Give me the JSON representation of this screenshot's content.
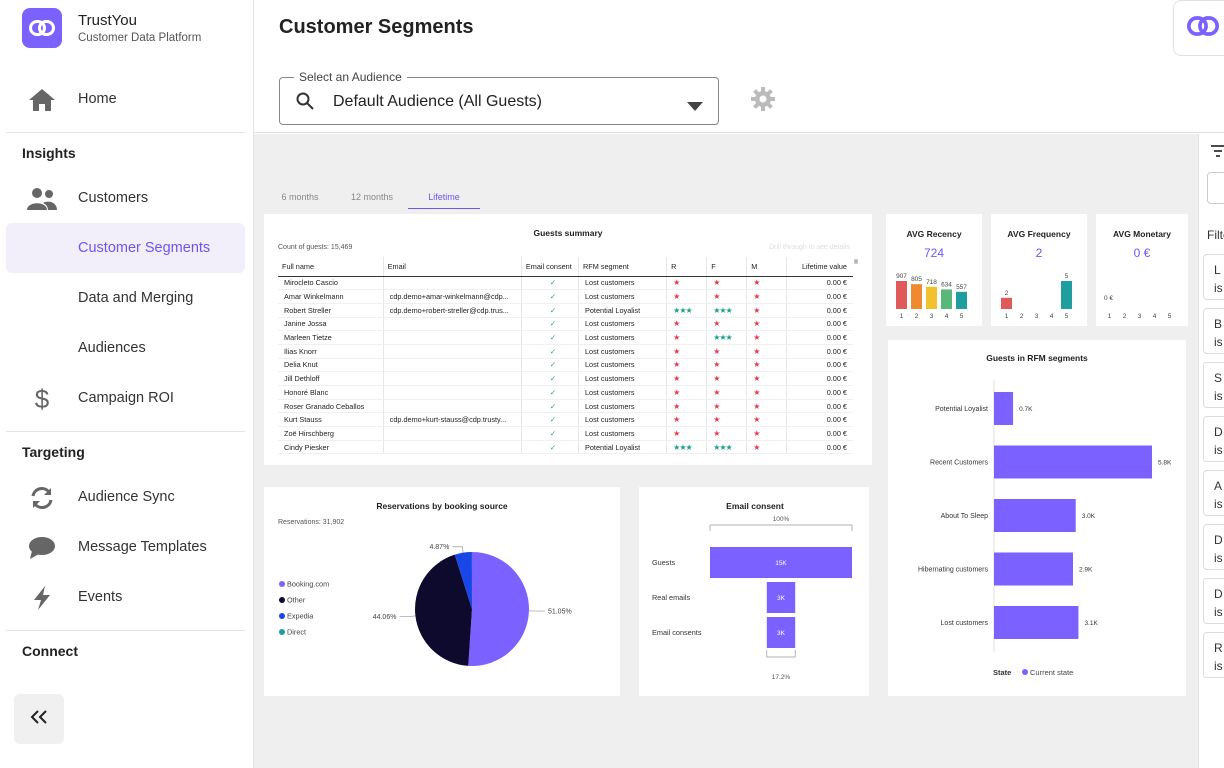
{
  "brand": {
    "name": "TrustYou",
    "subtitle": "Customer Data Platform"
  },
  "nav": {
    "home": "Home",
    "insights_heading": "Insights",
    "customers": "Customers",
    "customer_segments": "Customer Segments",
    "data_merging": "Data and Merging",
    "audiences": "Audiences",
    "campaign_roi": "Campaign ROI",
    "targeting_heading": "Targeting",
    "audience_sync": "Audience Sync",
    "message_templates": "Message Templates",
    "events": "Events",
    "connect_heading": "Connect"
  },
  "header": {
    "title": "Customer Segments",
    "audience_label": "Select an Audience",
    "audience_value": "Default Audience (All Guests)"
  },
  "tabs": [
    "6 months",
    "12 months",
    "Lifetime"
  ],
  "active_tab": "Lifetime",
  "guests_summary": {
    "title": "Guests summary",
    "count_label": "Count of guests: 15,469",
    "hint": "Drill through to see details",
    "columns": [
      "Full name",
      "Email",
      "Email consent",
      "RFM segment",
      "R",
      "F",
      "M",
      "Lifetime value"
    ],
    "rows": [
      [
        "Mirocleto Cascio",
        "",
        "✓",
        "Lost customers",
        "★",
        "★",
        "★",
        "0.00 €"
      ],
      [
        "Amar Winkelmann",
        "cdp.demo+amar-winkelmann@cdp...",
        "✓",
        "Lost customers",
        "★",
        "★",
        "★",
        "0.00 €"
      ],
      [
        "Robert Streller",
        "cdp.demo+robert-streller@cdp.trus...",
        "✓",
        "Potential Loyalist",
        "★★★",
        "★★★",
        "★",
        "0.00 €"
      ],
      [
        "Janine Jossa",
        "",
        "✓",
        "Lost customers",
        "★",
        "★",
        "★",
        "0.00 €"
      ],
      [
        "Marleen Tietze",
        "",
        "✓",
        "Lost customers",
        "★",
        "★★★",
        "★",
        "0.00 €"
      ],
      [
        "Ilias Knorr",
        "",
        "✓",
        "Lost customers",
        "★",
        "★",
        "★",
        "0.00 €"
      ],
      [
        "Delia Knut",
        "",
        "✓",
        "Lost customers",
        "★",
        "★",
        "★",
        "0.00 €"
      ],
      [
        "Jill Dethloff",
        "",
        "✓",
        "Lost customers",
        "★",
        "★",
        "★",
        "0.00 €"
      ],
      [
        "Honoré Blanc",
        "",
        "✓",
        "Lost customers",
        "★",
        "★",
        "★",
        "0.00 €"
      ],
      [
        "Roser Granado Ceballos",
        "",
        "✓",
        "Lost customers",
        "★",
        "★",
        "★",
        "0.00 €"
      ],
      [
        "Kurt Stauss",
        "cdp.demo+kurt-stauss@cdp.trusty...",
        "✓",
        "Lost customers",
        "★",
        "★",
        "★",
        "0.00 €"
      ],
      [
        "Zoë Hirschberg",
        "",
        "✓",
        "Lost customers",
        "★",
        "★",
        "★",
        "0.00 €"
      ],
      [
        "Cindy Piesker",
        "",
        "✓",
        "Potential Loyalist",
        "★★★",
        "★★★",
        "★",
        "0.00 €"
      ]
    ]
  },
  "kpis": [
    {
      "title": "AVG Recency",
      "value": "724"
    },
    {
      "title": "AVG Frequency",
      "value": "2"
    },
    {
      "title": "AVG Monetary",
      "value": "0 €"
    }
  ],
  "chart_data": [
    {
      "type": "bar",
      "title": "AVG Recency",
      "categories": [
        "1",
        "2",
        "3",
        "4",
        "5"
      ],
      "values": [
        907,
        805,
        718,
        634,
        557
      ],
      "colors": [
        "#e05a5a",
        "#f08a30",
        "#f2c12e",
        "#57b87a",
        "#1e9e9e"
      ]
    },
    {
      "type": "bar",
      "title": "AVG Frequency",
      "categories": [
        "1",
        "2",
        "3",
        "4",
        "5"
      ],
      "values": [
        2,
        0,
        0,
        0,
        5
      ],
      "colors": [
        "#e05a5a",
        "#f08a30",
        "#f2c12e",
        "#57b87a",
        "#1e9e9e"
      ]
    },
    {
      "type": "bar",
      "title": "AVG Monetary",
      "categories": [
        "1",
        "2",
        "3",
        "4",
        "5"
      ],
      "values": [
        0,
        0,
        0,
        0,
        0
      ],
      "value_label": "0 €"
    },
    {
      "type": "pie",
      "title": "Reservations by booking source",
      "subtitle": "Reservations: 31,902",
      "slices": [
        {
          "name": "Booking.com",
          "value": 51.05,
          "label": "51.05%",
          "color": "#7b61ff"
        },
        {
          "name": "Other",
          "value": 44.06,
          "label": "44.06%",
          "color": "#0d0a2e"
        },
        {
          "name": "Expedia",
          "value": 4.87,
          "label": "4.87%",
          "color": "#1946e6"
        },
        {
          "name": "Direct",
          "value": 0.02,
          "label": "",
          "color": "#1e9e9e"
        }
      ]
    },
    {
      "type": "bar",
      "title": "Email consent",
      "categories": [
        "Guests",
        "Real emails",
        "Email consents"
      ],
      "values": [
        15,
        3,
        3
      ],
      "labels": [
        "15K",
        "3K",
        "3K"
      ],
      "top_label": "100%",
      "bottom_label": "17.2%"
    },
    {
      "type": "bar",
      "title": "Guests in RFM segments",
      "orientation": "horizontal",
      "categories": [
        "Potential Loyalist",
        "Recent Customers",
        "About To Sleep",
        "Hibernating customers",
        "Lost customers"
      ],
      "values": [
        0.7,
        5.8,
        3.0,
        2.9,
        3.1
      ],
      "labels": [
        "0.7K",
        "5.8K",
        "3.0K",
        "2.9K",
        "3.1K"
      ],
      "xlim": [
        0,
        5.8
      ],
      "legend": {
        "title": "State",
        "series": "Current state"
      }
    }
  ],
  "right_panel": {
    "filter_label": "Filte",
    "letters": [
      "L",
      "B",
      "S",
      "D",
      "A",
      "D",
      "D",
      "R"
    ],
    "sub": "is"
  }
}
